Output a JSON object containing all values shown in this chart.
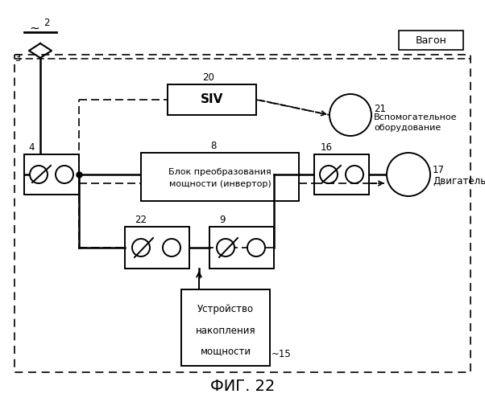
{
  "title": "ФИГ. 22",
  "background": "#ffffff",
  "wagon_label": "Вагон",
  "label_2": "2",
  "label_3": "3",
  "label_4": "4",
  "label_8": "8",
  "label_9": "9",
  "label_15": "15",
  "label_16": "16",
  "label_17": "17",
  "label_20": "20",
  "label_21": "21",
  "label_22": "22",
  "siv_text": "SIV",
  "inverter_line1": "Блок преобразования",
  "inverter_line2": "мощности (инвертор)",
  "storage_line1": "Устройство",
  "storage_line2": "накопления",
  "storage_line3": "мощности",
  "motor_text": "Двигатель",
  "aux_line1": "Вспомогательное",
  "aux_line2": "оборудование"
}
